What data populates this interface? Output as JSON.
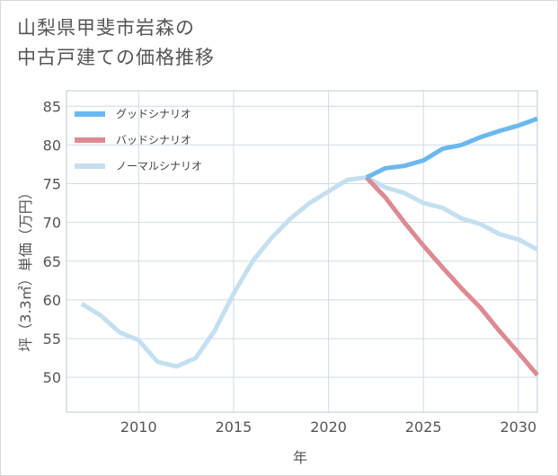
{
  "title": {
    "line1": "山梨県甲斐市岩森の",
    "line2": "中古戸建ての価格推移"
  },
  "chart_data": {
    "type": "line",
    "xlabel": "年",
    "ylabel": "坪（3.3㎡）単価（万円）",
    "xlim": [
      2006.2,
      2031
    ],
    "ylim": [
      45.5,
      87
    ],
    "x_ticks": [
      2010,
      2015,
      2020,
      2025,
      2030
    ],
    "y_ticks": [
      50,
      55,
      60,
      65,
      70,
      75,
      80,
      85
    ],
    "grid": true,
    "legend_position": "top-left",
    "series": [
      {
        "name": "グッドシナリオ",
        "color": "#6bb8ee",
        "x": [
          2022,
          2023,
          2024,
          2025,
          2026,
          2027,
          2028,
          2029,
          2030,
          2031
        ],
        "y": [
          75.8,
          77.0,
          77.3,
          78.0,
          79.5,
          80.0,
          81.0,
          81.8,
          82.5,
          83.4
        ]
      },
      {
        "name": "バッドシナリオ",
        "color": "#dd8a92",
        "x": [
          2022,
          2023,
          2024,
          2025,
          2026,
          2027,
          2028,
          2029,
          2030,
          2031
        ],
        "y": [
          75.8,
          73.2,
          70.0,
          67.0,
          64.2,
          61.5,
          59.0,
          56.0,
          53.2,
          50.3
        ]
      },
      {
        "name": "ノーマルシナリオ",
        "color": "#c4dff0",
        "x": [
          2007,
          2008,
          2009,
          2010,
          2011,
          2012,
          2013,
          2014,
          2015,
          2016,
          2017,
          2018,
          2019,
          2020,
          2021,
          2022,
          2023,
          2024,
          2025,
          2026,
          2027,
          2028,
          2029,
          2030,
          2031
        ],
        "y": [
          59.5,
          58.0,
          55.8,
          54.8,
          52.0,
          51.4,
          52.5,
          56.0,
          60.8,
          65.0,
          68.0,
          70.5,
          72.5,
          74.0,
          75.5,
          75.8,
          74.5,
          73.8,
          72.5,
          71.9,
          70.5,
          69.8,
          68.5,
          67.8,
          66.5
        ]
      }
    ]
  }
}
